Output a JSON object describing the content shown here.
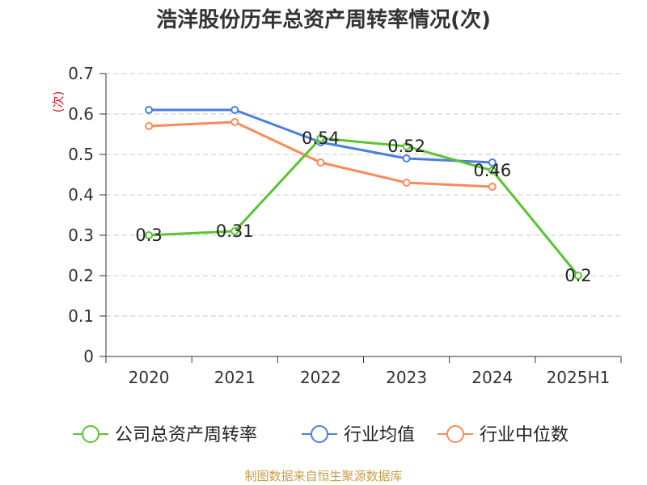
{
  "title": "浩洋股份历年总资产周转率情况(次)",
  "source": "制图数据来自恒生聚源数据库",
  "colors": {
    "company": "#5bc42e",
    "industry_avg": "#4a7fdf",
    "industry_median": "#f98b5a",
    "grid": "#c8c8c8",
    "axis": "#333333",
    "unit": "#e0182b"
  },
  "chart_data": {
    "type": "line",
    "title": "浩洋股份历年总资产周转率情况(次)",
    "ylabel": "(次)",
    "ylim": [
      0,
      0.7
    ],
    "yticks": [
      0,
      0.1,
      0.2,
      0.3,
      0.4,
      0.5,
      0.6,
      0.7
    ],
    "categories": [
      "2020",
      "2021",
      "2022",
      "2023",
      "2024",
      "2025H1"
    ],
    "grid": true,
    "legend_position": "bottom",
    "series": [
      {
        "name": "公司总资产周转率",
        "color": "#5bc42e",
        "values": [
          0.3,
          0.31,
          0.54,
          0.52,
          0.46,
          0.2
        ],
        "labels": [
          "0.3",
          "0.31",
          "0.54",
          "0.52",
          "0.46",
          "0.2"
        ]
      },
      {
        "name": "行业均值",
        "color": "#4a7fdf",
        "values": [
          0.61,
          0.61,
          0.53,
          0.49,
          0.48,
          null
        ]
      },
      {
        "name": "行业中位数",
        "color": "#f98b5a",
        "values": [
          0.57,
          0.58,
          0.48,
          0.43,
          0.42,
          null
        ]
      }
    ]
  }
}
